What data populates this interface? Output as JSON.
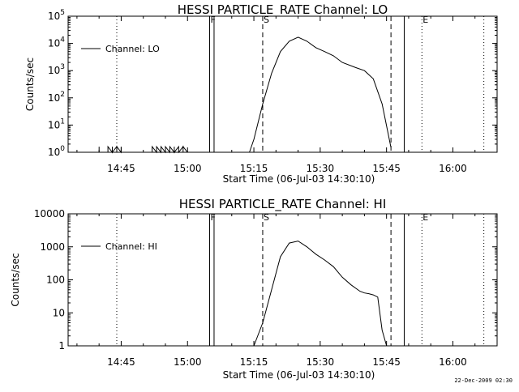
{
  "footer": {
    "timestamp": "22-Dec-2009 02:30"
  },
  "chart_data": [
    {
      "type": "line",
      "title": "HESSI PARTICLE_RATE Channel: LO",
      "xlabel": "Start Time (06-Jul-03 14:30:10)",
      "ylabel": "Counts/sec",
      "y_scale": "log",
      "ylim": [
        1,
        100000
      ],
      "xlim": [
        "14:33",
        "16:10"
      ],
      "x_ticks": [
        "14:45",
        "15:00",
        "15:15",
        "15:30",
        "15:45",
        "16:00"
      ],
      "y_ticks": [
        "10^0",
        "10^1",
        "10^2",
        "10^3",
        "10^4",
        "10^5"
      ],
      "y_tick_values": [
        1,
        10,
        100,
        1000,
        10000,
        100000
      ],
      "legend": {
        "position": "top-left",
        "entries": [
          "Channel: LO"
        ]
      },
      "grid": false,
      "markers": [
        {
          "label": "F",
          "time": "15:05",
          "style": "solid"
        },
        {
          "label": "",
          "time": "15:06",
          "style": "solid"
        },
        {
          "label": "S",
          "time": "15:17",
          "style": "dashed"
        },
        {
          "label": "",
          "time": "15:46",
          "style": "dashed"
        },
        {
          "label": "",
          "time": "15:49",
          "style": "solid"
        },
        {
          "label": "E",
          "time": "15:53",
          "style": "dotted"
        },
        {
          "label": "",
          "time": "14:44",
          "style": "dotted"
        },
        {
          "label": "",
          "time": "16:07",
          "style": "dotted"
        }
      ],
      "series": [
        {
          "name": "Channel: LO",
          "x": [
            "14:40",
            "14:40",
            "14:40",
            "14:42",
            "14:42",
            "14:43",
            "14:43",
            "14:43",
            "14:44",
            "14:44",
            "14:44",
            "14:45",
            "14:45",
            "14:45",
            "14:52",
            "14:52",
            "14:53",
            "14:53",
            "14:54",
            "14:54",
            "14:55",
            "14:55",
            "14:56",
            "14:56",
            "14:57",
            "14:57",
            "14:57",
            "14:58",
            "14:58",
            "14:59",
            "14:59",
            "14:59",
            "15:00",
            "15:00",
            "15:14",
            "15:15",
            "15:17",
            "15:19",
            "15:21",
            "15:23",
            "15:25",
            "15:27",
            "15:29",
            "15:31",
            "15:33",
            "15:35",
            "15:38",
            "15:40",
            "15:42",
            "15:44",
            "15:46"
          ],
          "y": [
            1,
            1.6,
            1,
            1,
            1.6,
            1,
            1.6,
            1,
            1.6,
            1,
            1.6,
            1,
            1.6,
            1,
            1,
            1.6,
            1,
            1.6,
            1,
            1.6,
            1,
            1.6,
            1,
            1.6,
            1,
            1.6,
            1,
            1.6,
            1,
            1.6,
            1,
            1.6,
            1,
            1,
            1,
            3,
            60,
            800,
            5000,
            12000,
            17000,
            12000,
            7000,
            5000,
            3500,
            2000,
            1300,
            1000,
            500,
            60,
            1.5
          ]
        }
      ]
    },
    {
      "type": "line",
      "title": "HESSI PARTICLE_RATE Channel: HI",
      "xlabel": "Start Time (06-Jul-03 14:30:10)",
      "ylabel": "Counts/sec",
      "y_scale": "log",
      "ylim": [
        1,
        10000
      ],
      "xlim": [
        "14:33",
        "16:10"
      ],
      "x_ticks": [
        "14:45",
        "15:00",
        "15:15",
        "15:30",
        "15:45",
        "16:00"
      ],
      "y_ticks": [
        "1",
        "10",
        "100",
        "1000",
        "10000"
      ],
      "y_tick_values": [
        1,
        10,
        100,
        1000,
        10000
      ],
      "legend": {
        "position": "top-left",
        "entries": [
          "Channel: HI"
        ]
      },
      "grid": false,
      "markers": [
        {
          "label": "F",
          "time": "15:05",
          "style": "solid"
        },
        {
          "label": "",
          "time": "15:06",
          "style": "solid"
        },
        {
          "label": "S",
          "time": "15:17",
          "style": "dashed"
        },
        {
          "label": "",
          "time": "15:46",
          "style": "dashed"
        },
        {
          "label": "",
          "time": "15:49",
          "style": "solid"
        },
        {
          "label": "E",
          "time": "15:53",
          "style": "dotted"
        },
        {
          "label": "",
          "time": "14:44",
          "style": "dotted"
        },
        {
          "label": "",
          "time": "16:07",
          "style": "dotted"
        }
      ],
      "series": [
        {
          "name": "Channel: HI",
          "x": [
            "15:15",
            "15:17",
            "15:19",
            "15:21",
            "15:23",
            "15:25",
            "15:27",
            "15:29",
            "15:31",
            "15:33",
            "15:35",
            "15:37",
            "15:39",
            "15:40",
            "15:41",
            "15:42",
            "15:43",
            "15:44",
            "15:45"
          ],
          "y": [
            1,
            5,
            50,
            500,
            1300,
            1500,
            1000,
            600,
            400,
            250,
            120,
            70,
            45,
            40,
            38,
            35,
            30,
            3,
            1
          ]
        }
      ]
    }
  ]
}
